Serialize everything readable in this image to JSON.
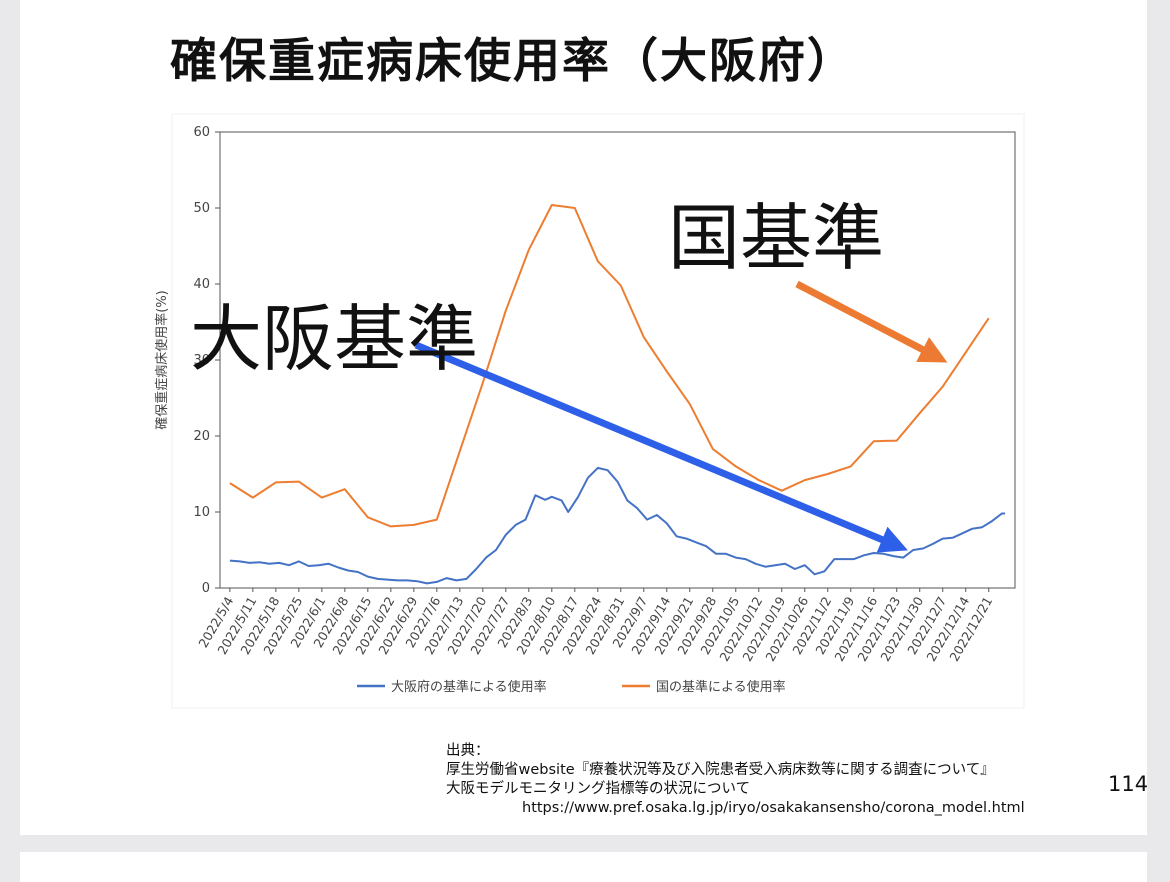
{
  "slide": {
    "title": "確保重症病床使用率（大阪府）",
    "page_number": "114",
    "source": {
      "heading": "出典：",
      "line1": "厚生労働省website『療養状況等及び入院患者受入病床数等に関する調査について』",
      "line2": "大阪モデルモニタリング指標等の状況について",
      "url": "https://www.pref.osaka.lg.jp/iryo/osakakansensho/corona_model.html"
    }
  },
  "annotations": {
    "national": {
      "label": "国基準",
      "arrow_color": "#ec7a32"
    },
    "osaka": {
      "label": "大阪基準",
      "arrow_color": "#2e5fe8"
    }
  },
  "chart_data": {
    "type": "line",
    "title": "",
    "xlabel": "",
    "ylabel": "確保重症病床使用率(%)",
    "ylim": [
      0,
      60
    ],
    "yticks": [
      0,
      10,
      20,
      30,
      40,
      50,
      60
    ],
    "grid": false,
    "legend_position": "bottom",
    "x_tick_labels": [
      "2022/5/4",
      "2022/5/11",
      "2022/5/18",
      "2022/5/25",
      "2022/6/1",
      "2022/6/8",
      "2022/6/15",
      "2022/6/22",
      "2022/6/29",
      "2022/7/6",
      "2022/7/13",
      "2022/7/20",
      "2022/7/27",
      "2022/8/3",
      "2022/8/10",
      "2022/8/17",
      "2022/8/24",
      "2022/8/31",
      "2022/9/7",
      "2022/9/14",
      "2022/9/21",
      "2022/9/28",
      "2022/10/5",
      "2022/10/12",
      "2022/10/19",
      "2022/10/26",
      "2022/11/2",
      "2022/11/9",
      "2022/11/16",
      "2022/11/23",
      "2022/11/30",
      "2022/12/7",
      "2022/12/14",
      "2022/12/21"
    ],
    "series": [
      {
        "name": "大阪府の基準による使用率",
        "color": "#4472c4",
        "points": [
          [
            "2022/5/4",
            3.6
          ],
          [
            "2022/5/7",
            3.5
          ],
          [
            "2022/5/10",
            3.3
          ],
          [
            "2022/5/13",
            3.4
          ],
          [
            "2022/5/16",
            3.2
          ],
          [
            "2022/5/19",
            3.3
          ],
          [
            "2022/5/22",
            3.0
          ],
          [
            "2022/5/25",
            3.5
          ],
          [
            "2022/5/28",
            2.9
          ],
          [
            "2022/5/31",
            3.0
          ],
          [
            "2022/6/3",
            3.2
          ],
          [
            "2022/6/6",
            2.7
          ],
          [
            "2022/6/9",
            2.3
          ],
          [
            "2022/6/12",
            2.1
          ],
          [
            "2022/6/15",
            1.5
          ],
          [
            "2022/6/18",
            1.2
          ],
          [
            "2022/6/21",
            1.1
          ],
          [
            "2022/6/24",
            1.0
          ],
          [
            "2022/6/27",
            1.0
          ],
          [
            "2022/6/30",
            0.9
          ],
          [
            "2022/7/3",
            0.6
          ],
          [
            "2022/7/6",
            0.8
          ],
          [
            "2022/7/9",
            1.3
          ],
          [
            "2022/7/12",
            1.0
          ],
          [
            "2022/7/15",
            1.2
          ],
          [
            "2022/7/18",
            2.5
          ],
          [
            "2022/7/21",
            4.0
          ],
          [
            "2022/7/24",
            5.0
          ],
          [
            "2022/7/27",
            7.0
          ],
          [
            "2022/7/30",
            8.3
          ],
          [
            "2022/8/2",
            9.0
          ],
          [
            "2022/8/5",
            12.2
          ],
          [
            "2022/8/8",
            11.6
          ],
          [
            "2022/8/10",
            12.0
          ],
          [
            "2022/8/13",
            11.5
          ],
          [
            "2022/8/15",
            10.0
          ],
          [
            "2022/8/18",
            12.0
          ],
          [
            "2022/8/21",
            14.5
          ],
          [
            "2022/8/24",
            15.8
          ],
          [
            "2022/8/27",
            15.5
          ],
          [
            "2022/8/30",
            14.0
          ],
          [
            "2022/9/2",
            11.5
          ],
          [
            "2022/9/5",
            10.5
          ],
          [
            "2022/9/8",
            9.0
          ],
          [
            "2022/9/11",
            9.6
          ],
          [
            "2022/9/14",
            8.5
          ],
          [
            "2022/9/17",
            6.8
          ],
          [
            "2022/9/20",
            6.5
          ],
          [
            "2022/9/23",
            6.0
          ],
          [
            "2022/9/26",
            5.5
          ],
          [
            "2022/9/29",
            4.5
          ],
          [
            "2022/10/2",
            4.5
          ],
          [
            "2022/10/5",
            4.0
          ],
          [
            "2022/10/8",
            3.8
          ],
          [
            "2022/10/11",
            3.2
          ],
          [
            "2022/10/14",
            2.8
          ],
          [
            "2022/10/17",
            3.0
          ],
          [
            "2022/10/20",
            3.2
          ],
          [
            "2022/10/23",
            2.5
          ],
          [
            "2022/10/26",
            3.0
          ],
          [
            "2022/10/29",
            1.8
          ],
          [
            "2022/11/1",
            2.2
          ],
          [
            "2022/11/4",
            3.8
          ],
          [
            "2022/11/7",
            3.8
          ],
          [
            "2022/11/10",
            3.8
          ],
          [
            "2022/11/13",
            4.3
          ],
          [
            "2022/11/16",
            4.6
          ],
          [
            "2022/11/19",
            4.5
          ],
          [
            "2022/11/22",
            4.2
          ],
          [
            "2022/11/25",
            4.0
          ],
          [
            "2022/11/28",
            5.0
          ],
          [
            "2022/12/1",
            5.2
          ],
          [
            "2022/12/4",
            5.8
          ],
          [
            "2022/12/7",
            6.5
          ],
          [
            "2022/12/10",
            6.6
          ],
          [
            "2022/12/13",
            7.2
          ],
          [
            "2022/12/16",
            7.8
          ],
          [
            "2022/12/19",
            8.0
          ],
          [
            "2022/12/22",
            8.8
          ],
          [
            "2022/12/25",
            9.8
          ],
          [
            "2022/12/26",
            9.8
          ]
        ]
      },
      {
        "name": "国の基準による使用率",
        "color": "#ed7d31",
        "points": [
          [
            "2022/5/4",
            13.8
          ],
          [
            "2022/5/11",
            11.9
          ],
          [
            "2022/5/18",
            13.9
          ],
          [
            "2022/5/25",
            14.0
          ],
          [
            "2022/6/1",
            11.9
          ],
          [
            "2022/6/8",
            13.0
          ],
          [
            "2022/6/15",
            9.3
          ],
          [
            "2022/6/22",
            8.1
          ],
          [
            "2022/6/29",
            8.3
          ],
          [
            "2022/7/6",
            9.0
          ],
          [
            "2022/7/13",
            18.0
          ],
          [
            "2022/7/20",
            27.0
          ],
          [
            "2022/7/27",
            36.5
          ],
          [
            "2022/8/3",
            44.5
          ],
          [
            "2022/8/10",
            50.4
          ],
          [
            "2022/8/17",
            50.0
          ],
          [
            "2022/8/24",
            43.0
          ],
          [
            "2022/8/31",
            39.8
          ],
          [
            "2022/9/7",
            33.0
          ],
          [
            "2022/9/14",
            28.5
          ],
          [
            "2022/9/21",
            24.2
          ],
          [
            "2022/9/28",
            18.3
          ],
          [
            "2022/10/5",
            16.0
          ],
          [
            "2022/10/12",
            14.2
          ],
          [
            "2022/10/19",
            12.8
          ],
          [
            "2022/10/26",
            14.2
          ],
          [
            "2022/11/2",
            15.0
          ],
          [
            "2022/11/9",
            16.0
          ],
          [
            "2022/11/16",
            19.3
          ],
          [
            "2022/11/23",
            19.4
          ],
          [
            "2022/11/30",
            23.0
          ],
          [
            "2022/12/7",
            26.5
          ],
          [
            "2022/12/14",
            31.0
          ],
          [
            "2022/12/21",
            35.5
          ]
        ]
      }
    ]
  }
}
